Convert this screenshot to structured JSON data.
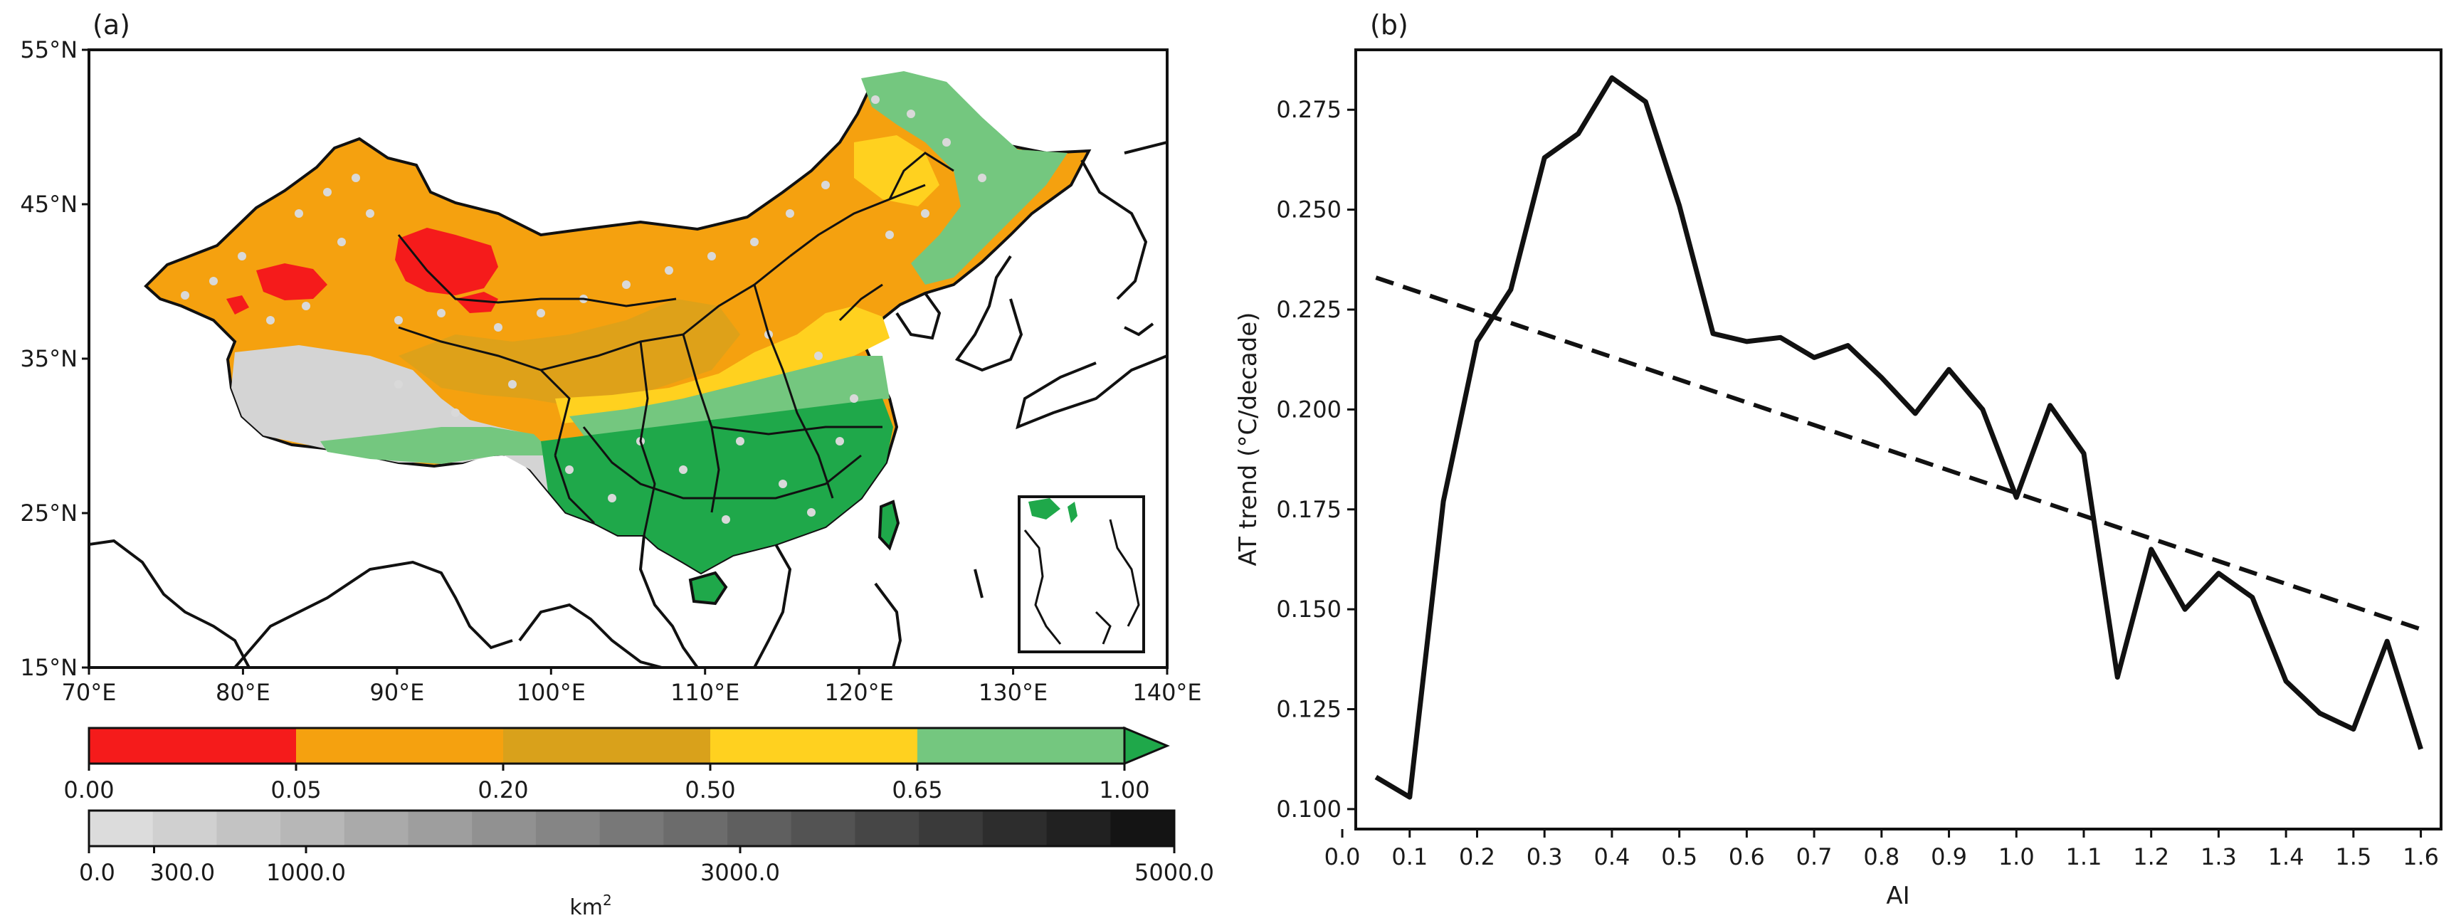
{
  "chart_data": [
    {
      "type": "map",
      "panel_label": "(a)",
      "lat_ticks": [
        "55°N",
        "45°N",
        "35°N",
        "25°N",
        "15°N"
      ],
      "lon_ticks": [
        "70°E",
        "80°E",
        "90°E",
        "100°E",
        "110°E",
        "120°E",
        "130°E",
        "140°E"
      ],
      "lat_range": [
        15,
        55
      ],
      "lon_range": [
        70,
        140
      ],
      "colorbar_ai": {
        "bounds": [
          0.0,
          0.05,
          0.2,
          0.5,
          0.65,
          1.0
        ],
        "tick_labels": [
          "0.00",
          "0.05",
          "0.20",
          "0.50",
          "0.65",
          "1.00"
        ],
        "colors": [
          "#f51b1b",
          "#f5a10f",
          "#d9a11b",
          "#ffd11f",
          "#74c77f"
        ],
        "extend_color": "#1fa84a"
      },
      "colorbar_area": {
        "range": [
          0,
          5000
        ],
        "tick_labels": [
          "0.0",
          "300.0",
          "1000.0",
          "3000.0",
          "5000.0"
        ],
        "tick_values": [
          0,
          300,
          1000,
          3000,
          5000
        ],
        "unit_label": "km",
        "unit_exponent": "2",
        "levels": 17
      },
      "colors": {
        "land_green": "#1fa84a",
        "ocean": "#ffffff",
        "border": "#111111",
        "dots": "#d9d9d9"
      }
    },
    {
      "type": "line",
      "panel_label": "(b)",
      "xlabel": "AI",
      "ylabel": "AT trend (°C/decade)",
      "xlim": [
        0.02,
        1.63
      ],
      "ylim": [
        0.095,
        0.29
      ],
      "x_ticks": [
        0.0,
        0.1,
        0.2,
        0.3,
        0.4,
        0.5,
        0.6,
        0.7,
        0.8,
        0.9,
        1.0,
        1.1,
        1.2,
        1.3,
        1.4,
        1.5,
        1.6
      ],
      "x_tick_labels": [
        "0.0",
        "0.1",
        "0.2",
        "0.3",
        "0.4",
        "0.5",
        "0.6",
        "0.7",
        "0.8",
        "0.9",
        "1.0",
        "1.1",
        "1.2",
        "1.3",
        "1.4",
        "1.5",
        "1.6"
      ],
      "y_ticks": [
        0.1,
        0.125,
        0.15,
        0.175,
        0.2,
        0.225,
        0.25,
        0.275
      ],
      "y_tick_labels": [
        "0.100",
        "0.125",
        "0.150",
        "0.175",
        "0.200",
        "0.225",
        "0.250",
        "0.275"
      ],
      "series": [
        {
          "name": "AT trend",
          "style": "solid",
          "x": [
            0.05,
            0.1,
            0.15,
            0.2,
            0.25,
            0.3,
            0.35,
            0.4,
            0.45,
            0.5,
            0.55,
            0.6,
            0.65,
            0.7,
            0.75,
            0.8,
            0.85,
            0.9,
            0.95,
            1.0,
            1.05,
            1.1,
            1.15,
            1.2,
            1.25,
            1.3,
            1.35,
            1.4,
            1.45,
            1.5,
            1.55,
            1.6
          ],
          "values": [
            0.108,
            0.103,
            0.177,
            0.217,
            0.23,
            0.263,
            0.269,
            0.283,
            0.277,
            0.251,
            0.219,
            0.217,
            0.218,
            0.213,
            0.216,
            0.208,
            0.199,
            0.21,
            0.2,
            0.178,
            0.201,
            0.189,
            0.133,
            0.165,
            0.15,
            0.159,
            0.153,
            0.132,
            0.124,
            0.12,
            0.142,
            0.115
          ]
        },
        {
          "name": "Linear fit",
          "style": "dashed",
          "x": [
            0.05,
            1.6
          ],
          "values": [
            0.233,
            0.145
          ]
        }
      ]
    }
  ]
}
